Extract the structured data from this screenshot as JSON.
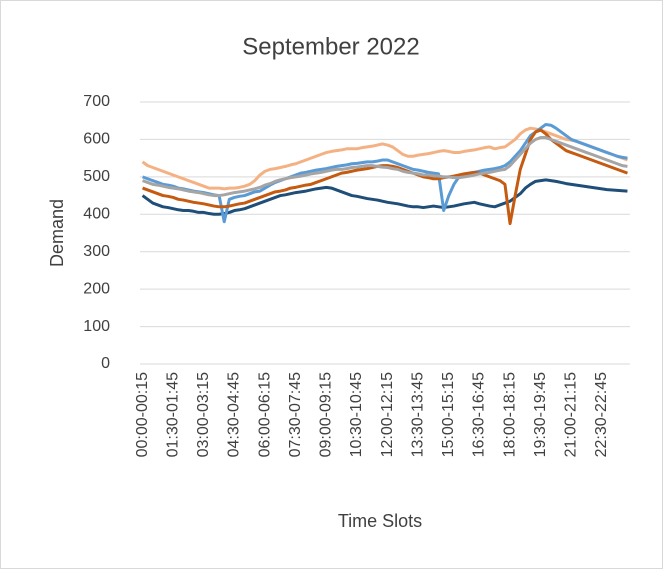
{
  "chart_data": {
    "type": "line",
    "title": "September 2022",
    "x_label": "Time Slots",
    "y_label": "Demand",
    "categories": [
      "00:00-00:15",
      null,
      null,
      null,
      null,
      null,
      "01:30-01:45",
      null,
      null,
      null,
      null,
      null,
      "03:00-03:15",
      null,
      null,
      null,
      null,
      null,
      "04:30-04:45",
      null,
      null,
      null,
      null,
      null,
      "06:00-06:15",
      null,
      null,
      null,
      null,
      null,
      "07:30-07:45",
      null,
      null,
      null,
      null,
      null,
      "09:00-09:15",
      null,
      null,
      null,
      null,
      null,
      "10:30-10:45",
      null,
      null,
      null,
      null,
      null,
      "12:00-12:15",
      null,
      null,
      null,
      null,
      null,
      "13:30-13:45",
      null,
      null,
      null,
      null,
      null,
      "15:00-15:15",
      null,
      null,
      null,
      null,
      null,
      "16:30-16:45",
      null,
      null,
      null,
      null,
      null,
      "18:00-18:15",
      null,
      null,
      null,
      null,
      null,
      "19:30-19:45",
      null,
      null,
      null,
      null,
      null,
      "21:00-21:15",
      null,
      null,
      null,
      null,
      null,
      "22:30-22:45",
      null,
      null,
      null,
      null,
      null
    ],
    "series": [
      {
        "color": "#F4B183",
        "values": [
          540,
          530,
          525,
          520,
          515,
          510,
          505,
          500,
          495,
          490,
          485,
          480,
          475,
          470,
          470,
          470,
          468,
          470,
          470,
          472,
          475,
          480,
          490,
          505,
          515,
          520,
          522,
          525,
          528,
          532,
          535,
          540,
          545,
          550,
          555,
          560,
          565,
          568,
          570,
          572,
          575,
          575,
          575,
          578,
          580,
          582,
          585,
          588,
          585,
          580,
          570,
          560,
          555,
          555,
          558,
          560,
          562,
          565,
          568,
          570,
          568,
          565,
          565,
          568,
          570,
          572,
          575,
          578,
          580,
          575,
          578,
          580,
          590,
          600,
          615,
          625,
          630,
          628,
          625,
          620,
          615,
          610,
          605,
          600,
          598,
          595,
          590,
          585,
          580,
          575,
          570,
          565,
          560,
          555,
          550,
          545
        ]
      },
      {
        "color": "#1F4E79",
        "values": [
          450,
          440,
          430,
          425,
          420,
          418,
          415,
          412,
          410,
          410,
          408,
          405,
          405,
          402,
          400,
          400,
          402,
          405,
          410,
          412,
          415,
          420,
          425,
          430,
          435,
          440,
          445,
          450,
          452,
          455,
          458,
          460,
          462,
          465,
          468,
          470,
          472,
          470,
          465,
          460,
          455,
          450,
          448,
          445,
          442,
          440,
          438,
          435,
          432,
          430,
          428,
          425,
          422,
          420,
          420,
          418,
          420,
          422,
          420,
          418,
          420,
          422,
          425,
          428,
          430,
          432,
          428,
          425,
          422,
          420,
          425,
          430,
          435,
          445,
          455,
          470,
          480,
          488,
          490,
          492,
          490,
          488,
          485,
          482,
          480,
          478,
          476,
          474,
          472,
          470,
          468,
          466,
          465,
          464,
          463,
          462
        ]
      },
      {
        "color": "#5B9BD5",
        "values": [
          500,
          495,
          490,
          485,
          480,
          478,
          475,
          470,
          468,
          465,
          462,
          460,
          458,
          455,
          452,
          450,
          380,
          440,
          445,
          448,
          450,
          455,
          460,
          462,
          470,
          478,
          485,
          490,
          495,
          500,
          505,
          510,
          512,
          515,
          518,
          520,
          522,
          525,
          528,
          530,
          532,
          535,
          536,
          538,
          540,
          540,
          542,
          545,
          545,
          540,
          535,
          530,
          525,
          520,
          518,
          515,
          512,
          510,
          508,
          410,
          450,
          480,
          500,
          505,
          510,
          512,
          515,
          518,
          520,
          522,
          525,
          530,
          540,
          555,
          570,
          590,
          610,
          620,
          630,
          640,
          638,
          630,
          620,
          610,
          600,
          595,
          590,
          585,
          580,
          575,
          570,
          565,
          560,
          555,
          552,
          550
        ]
      },
      {
        "color": "#C55A11",
        "values": [
          470,
          465,
          460,
          455,
          450,
          448,
          445,
          440,
          438,
          435,
          432,
          430,
          428,
          425,
          422,
          420,
          420,
          422,
          425,
          428,
          430,
          435,
          440,
          445,
          450,
          455,
          460,
          462,
          465,
          470,
          472,
          475,
          478,
          480,
          485,
          490,
          495,
          500,
          505,
          510,
          512,
          515,
          518,
          520,
          522,
          525,
          528,
          530,
          530,
          528,
          525,
          520,
          515,
          510,
          505,
          500,
          498,
          495,
          495,
          498,
          500,
          502,
          505,
          508,
          510,
          512,
          510,
          505,
          500,
          495,
          490,
          480,
          375,
          450,
          520,
          560,
          600,
          620,
          625,
          615,
          600,
          590,
          580,
          570,
          565,
          560,
          555,
          550,
          545,
          540,
          535,
          530,
          525,
          520,
          515,
          510
        ]
      },
      {
        "color": "#A5A5A5",
        "values": [
          490,
          485,
          480,
          478,
          475,
          472,
          470,
          468,
          465,
          462,
          460,
          458,
          455,
          452,
          450,
          450,
          452,
          455,
          458,
          460,
          462,
          465,
          468,
          472,
          478,
          482,
          488,
          492,
          495,
          498,
          500,
          502,
          505,
          508,
          510,
          512,
          515,
          518,
          520,
          520,
          522,
          525,
          526,
          528,
          530,
          530,
          528,
          526,
          525,
          522,
          520,
          515,
          512,
          510,
          508,
          505,
          505,
          503,
          502,
          500,
          500,
          498,
          498,
          500,
          502,
          505,
          508,
          510,
          512,
          515,
          518,
          520,
          530,
          545,
          560,
          575,
          590,
          600,
          605,
          605,
          600,
          595,
          590,
          585,
          580,
          575,
          570,
          565,
          560,
          555,
          550,
          545,
          540,
          535,
          530,
          528
        ]
      }
    ],
    "ylim": [
      0,
      700
    ],
    "yticks": [
      0,
      100,
      200,
      300,
      400,
      500,
      600,
      700
    ],
    "grid": true
  }
}
